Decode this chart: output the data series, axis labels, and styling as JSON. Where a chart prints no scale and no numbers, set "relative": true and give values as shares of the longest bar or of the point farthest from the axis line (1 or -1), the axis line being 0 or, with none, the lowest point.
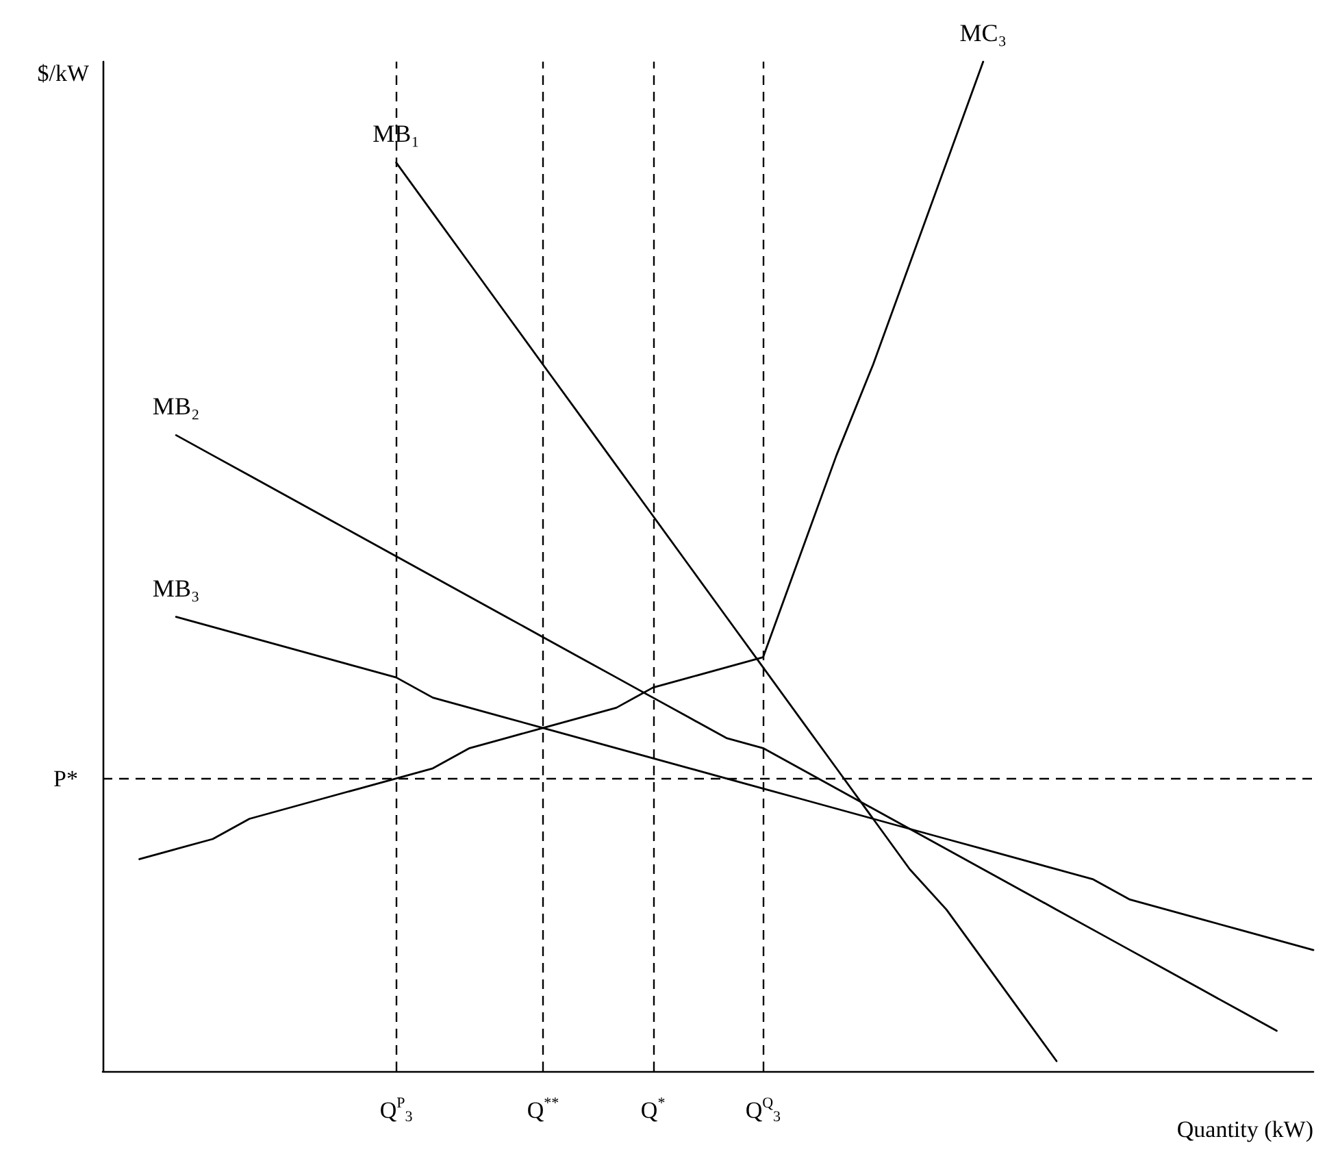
{
  "chart_data": {
    "type": "line",
    "relative": true,
    "xlabel": "Quantity (kW)",
    "ylabel": "$/kW",
    "marker": "none",
    "line_style": "solid",
    "grid": false,
    "legend": false,
    "categories": [
      null,
      null,
      null,
      null,
      null,
      null,
      null,
      null,
      "Q$^{P}$$_{3}$",
      null,
      null,
      null,
      "Q$^{**}$",
      null,
      null,
      "Q$^{*}$",
      null,
      null,
      "Q$^{Q}$$_{3}$",
      null,
      null,
      null,
      null,
      null,
      null,
      null,
      null,
      null,
      null,
      null,
      null,
      null,
      null,
      null
    ],
    "series": [
      {
        "name": "MB₁",
        "color": "#000000",
        "values": [
          null,
          null,
          null,
          null,
          null,
          null,
          null,
          null,
          0.9,
          0.85,
          0.8,
          0.75,
          0.7,
          0.65,
          0.6,
          0.55,
          0.5,
          0.45,
          0.4,
          0.35,
          0.3,
          0.25,
          0.2,
          0.16,
          0.11,
          0.06,
          0.01,
          null,
          null,
          null,
          null,
          null,
          null,
          null
        ]
      },
      {
        "name": "MB₂",
        "color": "#000000",
        "values": [
          null,
          null,
          0.63,
          0.61,
          0.59,
          0.57,
          0.55,
          0.53,
          0.51,
          0.49,
          0.47,
          0.45,
          0.43,
          0.41,
          0.39,
          0.37,
          0.35,
          0.33,
          0.32,
          0.3,
          0.28,
          0.26,
          0.24,
          0.22,
          0.2,
          0.18,
          0.16,
          0.14,
          0.12,
          0.1,
          0.08,
          0.06,
          0.04,
          null
        ]
      },
      {
        "name": "MB₃",
        "color": "#000000",
        "values": [
          null,
          null,
          0.45,
          0.44,
          0.43,
          0.42,
          0.41,
          0.4,
          0.39,
          0.37,
          0.36,
          0.35,
          0.34,
          0.33,
          0.32,
          0.31,
          0.3,
          0.29,
          0.28,
          0.27,
          0.26,
          0.25,
          0.24,
          0.23,
          0.22,
          0.21,
          0.2,
          0.19,
          0.17,
          0.16,
          0.15,
          0.14,
          0.13,
          0.12
        ]
      },
      {
        "name": "MC₃",
        "color": "#000000",
        "values": [
          null,
          0.21,
          0.22,
          0.23,
          0.25,
          0.26,
          0.27,
          0.28,
          0.29,
          0.3,
          0.32,
          0.33,
          0.34,
          0.35,
          0.36,
          0.38,
          0.39,
          0.4,
          0.41,
          0.51,
          0.61,
          0.7,
          0.8,
          0.9,
          1.0,
          null,
          null,
          null,
          null,
          null,
          null,
          null,
          null,
          null
        ]
      }
    ],
    "ref_lines": [
      {
        "axis": "y",
        "value": 0.29,
        "label": "P*",
        "color": "#000000",
        "line_style": "dashed"
      },
      {
        "axis": "x",
        "value": "Q$^{P}$$_{3}$",
        "color": "#000000",
        "line_style": "dashed"
      },
      {
        "axis": "x",
        "value": "Q$^{**}$",
        "color": "#000000",
        "line_style": "dashed"
      },
      {
        "axis": "x",
        "value": "Q$^{*}$",
        "color": "#000000",
        "line_style": "dashed"
      },
      {
        "axis": "x",
        "value": "Q$^{Q}$$_{3}$",
        "color": "#000000",
        "line_style": "dashed"
      }
    ]
  }
}
